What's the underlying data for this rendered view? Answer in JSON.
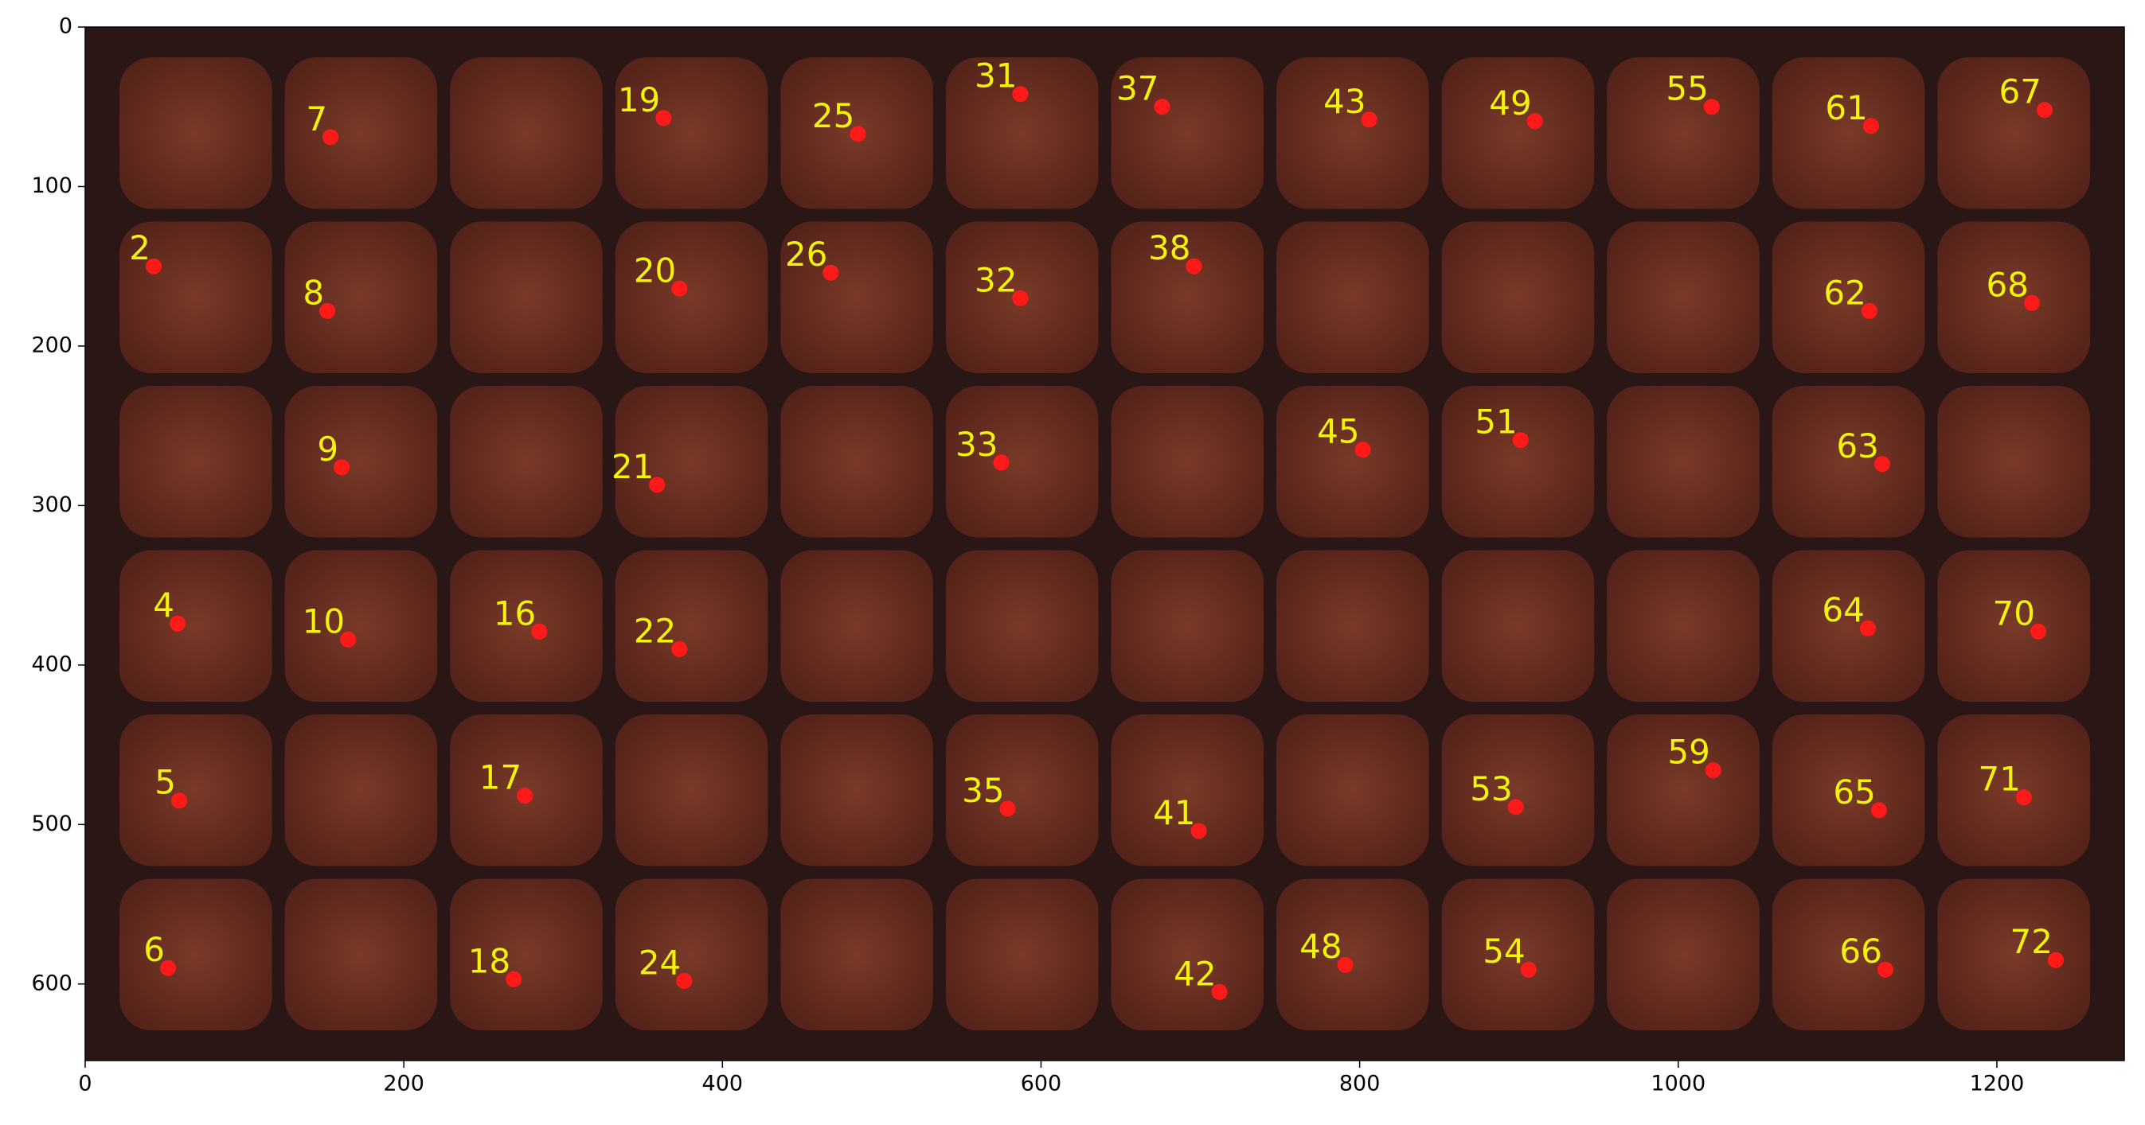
{
  "chart_data": {
    "type": "scatter",
    "labels": [
      "7",
      "19",
      "25",
      "31",
      "37",
      "43",
      "49",
      "55",
      "61",
      "67",
      "2",
      "8",
      "20",
      "26",
      "32",
      "38",
      "62",
      "68",
      "9",
      "21",
      "33",
      "45",
      "51",
      "63",
      "4",
      "10",
      "16",
      "22",
      "64",
      "70",
      "5",
      "17",
      "35",
      "41",
      "53",
      "59",
      "65",
      "71",
      "6",
      "18",
      "24",
      "42",
      "48",
      "54",
      "66",
      "72"
    ],
    "x": [
      154,
      363,
      485,
      587,
      676,
      806,
      910,
      1021,
      1121,
      1230,
      43,
      152,
      373,
      468,
      587,
      696,
      1120,
      1222,
      161,
      359,
      575,
      802,
      901,
      1128,
      58,
      165,
      285,
      373,
      1119,
      1226,
      59,
      276,
      579,
      699,
      898,
      1022,
      1126,
      1217,
      52,
      269,
      376,
      712,
      791,
      906,
      1130,
      1237
    ],
    "y": [
      69,
      57,
      67,
      42,
      50,
      58,
      59,
      50,
      62,
      52,
      150,
      178,
      164,
      154,
      170,
      150,
      178,
      173,
      276,
      287,
      273,
      265,
      259,
      274,
      374,
      384,
      379,
      390,
      377,
      379,
      485,
      482,
      490,
      504,
      489,
      466,
      491,
      483,
      590,
      597,
      598,
      605,
      588,
      591,
      591,
      585
    ],
    "color": "#ff1a1a",
    "label_color": "#f2f20a",
    "xlim": [
      0,
      1280
    ],
    "ylim": [
      648,
      0
    ],
    "xticks": [
      0,
      200,
      400,
      600,
      800,
      1000,
      1200
    ],
    "yticks": [
      0,
      100,
      200,
      300,
      400,
      500,
      600
    ]
  }
}
